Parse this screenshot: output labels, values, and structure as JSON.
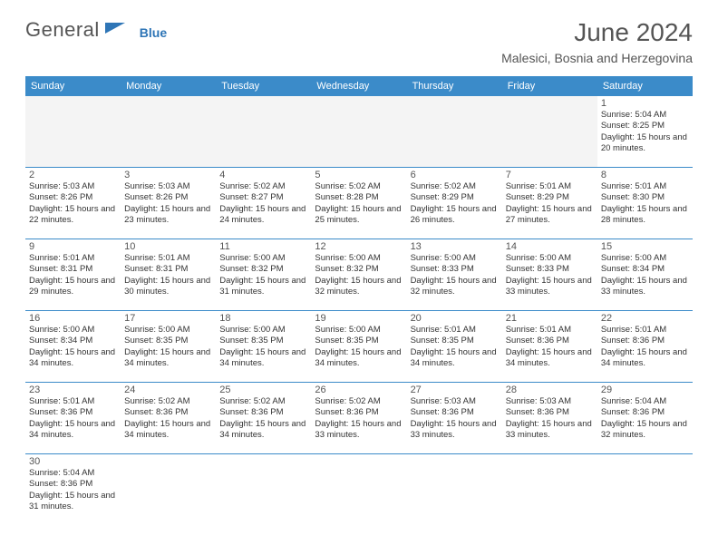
{
  "brand": {
    "general": "General",
    "blue": "Blue"
  },
  "title": {
    "month": "June 2024",
    "location": "Malesici, Bosnia and Herzegovina"
  },
  "colors": {
    "header_bg": "#3b8bc9",
    "header_text": "#ffffff",
    "border": "#3b8bc9",
    "logo_blue": "#2e75b6",
    "text": "#333333",
    "muted": "#555555",
    "empty_bg": "#f4f4f4"
  },
  "day_headers": [
    "Sunday",
    "Monday",
    "Tuesday",
    "Wednesday",
    "Thursday",
    "Friday",
    "Saturday"
  ],
  "weeks": [
    [
      null,
      null,
      null,
      null,
      null,
      null,
      {
        "n": "1",
        "sr": "Sunrise: 5:04 AM",
        "ss": "Sunset: 8:25 PM",
        "dl": "Daylight: 15 hours and 20 minutes."
      }
    ],
    [
      {
        "n": "2",
        "sr": "Sunrise: 5:03 AM",
        "ss": "Sunset: 8:26 PM",
        "dl": "Daylight: 15 hours and 22 minutes."
      },
      {
        "n": "3",
        "sr": "Sunrise: 5:03 AM",
        "ss": "Sunset: 8:26 PM",
        "dl": "Daylight: 15 hours and 23 minutes."
      },
      {
        "n": "4",
        "sr": "Sunrise: 5:02 AM",
        "ss": "Sunset: 8:27 PM",
        "dl": "Daylight: 15 hours and 24 minutes."
      },
      {
        "n": "5",
        "sr": "Sunrise: 5:02 AM",
        "ss": "Sunset: 8:28 PM",
        "dl": "Daylight: 15 hours and 25 minutes."
      },
      {
        "n": "6",
        "sr": "Sunrise: 5:02 AM",
        "ss": "Sunset: 8:29 PM",
        "dl": "Daylight: 15 hours and 26 minutes."
      },
      {
        "n": "7",
        "sr": "Sunrise: 5:01 AM",
        "ss": "Sunset: 8:29 PM",
        "dl": "Daylight: 15 hours and 27 minutes."
      },
      {
        "n": "8",
        "sr": "Sunrise: 5:01 AM",
        "ss": "Sunset: 8:30 PM",
        "dl": "Daylight: 15 hours and 28 minutes."
      }
    ],
    [
      {
        "n": "9",
        "sr": "Sunrise: 5:01 AM",
        "ss": "Sunset: 8:31 PM",
        "dl": "Daylight: 15 hours and 29 minutes."
      },
      {
        "n": "10",
        "sr": "Sunrise: 5:01 AM",
        "ss": "Sunset: 8:31 PM",
        "dl": "Daylight: 15 hours and 30 minutes."
      },
      {
        "n": "11",
        "sr": "Sunrise: 5:00 AM",
        "ss": "Sunset: 8:32 PM",
        "dl": "Daylight: 15 hours and 31 minutes."
      },
      {
        "n": "12",
        "sr": "Sunrise: 5:00 AM",
        "ss": "Sunset: 8:32 PM",
        "dl": "Daylight: 15 hours and 32 minutes."
      },
      {
        "n": "13",
        "sr": "Sunrise: 5:00 AM",
        "ss": "Sunset: 8:33 PM",
        "dl": "Daylight: 15 hours and 32 minutes."
      },
      {
        "n": "14",
        "sr": "Sunrise: 5:00 AM",
        "ss": "Sunset: 8:33 PM",
        "dl": "Daylight: 15 hours and 33 minutes."
      },
      {
        "n": "15",
        "sr": "Sunrise: 5:00 AM",
        "ss": "Sunset: 8:34 PM",
        "dl": "Daylight: 15 hours and 33 minutes."
      }
    ],
    [
      {
        "n": "16",
        "sr": "Sunrise: 5:00 AM",
        "ss": "Sunset: 8:34 PM",
        "dl": "Daylight: 15 hours and 34 minutes."
      },
      {
        "n": "17",
        "sr": "Sunrise: 5:00 AM",
        "ss": "Sunset: 8:35 PM",
        "dl": "Daylight: 15 hours and 34 minutes."
      },
      {
        "n": "18",
        "sr": "Sunrise: 5:00 AM",
        "ss": "Sunset: 8:35 PM",
        "dl": "Daylight: 15 hours and 34 minutes."
      },
      {
        "n": "19",
        "sr": "Sunrise: 5:00 AM",
        "ss": "Sunset: 8:35 PM",
        "dl": "Daylight: 15 hours and 34 minutes."
      },
      {
        "n": "20",
        "sr": "Sunrise: 5:01 AM",
        "ss": "Sunset: 8:35 PM",
        "dl": "Daylight: 15 hours and 34 minutes."
      },
      {
        "n": "21",
        "sr": "Sunrise: 5:01 AM",
        "ss": "Sunset: 8:36 PM",
        "dl": "Daylight: 15 hours and 34 minutes."
      },
      {
        "n": "22",
        "sr": "Sunrise: 5:01 AM",
        "ss": "Sunset: 8:36 PM",
        "dl": "Daylight: 15 hours and 34 minutes."
      }
    ],
    [
      {
        "n": "23",
        "sr": "Sunrise: 5:01 AM",
        "ss": "Sunset: 8:36 PM",
        "dl": "Daylight: 15 hours and 34 minutes."
      },
      {
        "n": "24",
        "sr": "Sunrise: 5:02 AM",
        "ss": "Sunset: 8:36 PM",
        "dl": "Daylight: 15 hours and 34 minutes."
      },
      {
        "n": "25",
        "sr": "Sunrise: 5:02 AM",
        "ss": "Sunset: 8:36 PM",
        "dl": "Daylight: 15 hours and 34 minutes."
      },
      {
        "n": "26",
        "sr": "Sunrise: 5:02 AM",
        "ss": "Sunset: 8:36 PM",
        "dl": "Daylight: 15 hours and 33 minutes."
      },
      {
        "n": "27",
        "sr": "Sunrise: 5:03 AM",
        "ss": "Sunset: 8:36 PM",
        "dl": "Daylight: 15 hours and 33 minutes."
      },
      {
        "n": "28",
        "sr": "Sunrise: 5:03 AM",
        "ss": "Sunset: 8:36 PM",
        "dl": "Daylight: 15 hours and 33 minutes."
      },
      {
        "n": "29",
        "sr": "Sunrise: 5:04 AM",
        "ss": "Sunset: 8:36 PM",
        "dl": "Daylight: 15 hours and 32 minutes."
      }
    ],
    [
      {
        "n": "30",
        "sr": "Sunrise: 5:04 AM",
        "ss": "Sunset: 8:36 PM",
        "dl": "Daylight: 15 hours and 31 minutes."
      },
      null,
      null,
      null,
      null,
      null,
      null
    ]
  ]
}
